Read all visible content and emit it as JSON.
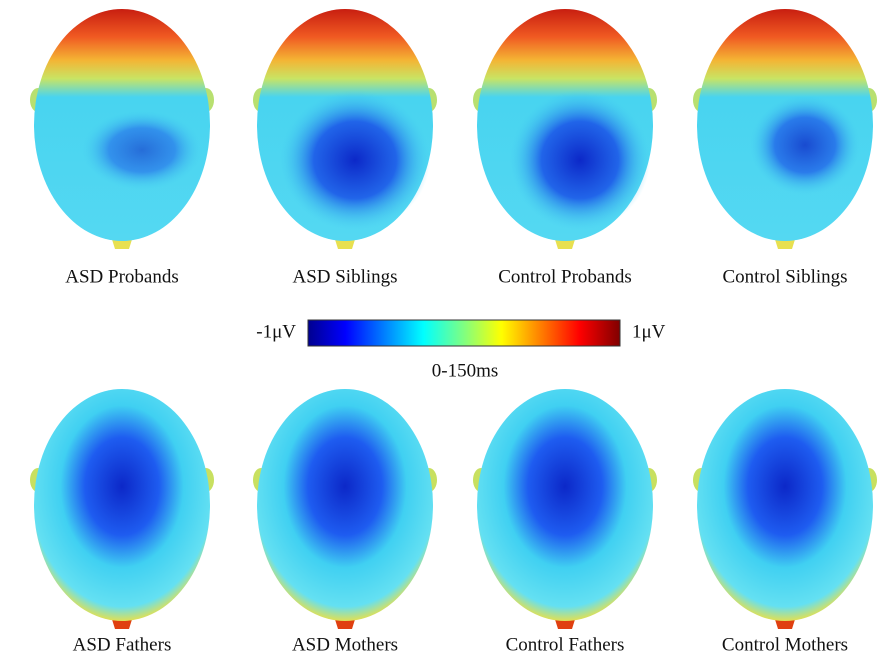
{
  "panels": [
    {
      "label": "ASD Probands"
    },
    {
      "label": "ASD Siblings"
    },
    {
      "label": "Control Probands"
    },
    {
      "label": "Control Siblings"
    },
    {
      "label": "ASD Fathers"
    },
    {
      "label": "ASD Mothers"
    },
    {
      "label": "Control Fathers"
    },
    {
      "label": "Control Mothers"
    }
  ],
  "colorbar": {
    "min_label": "-1μV",
    "max_label": "1μV",
    "caption": "0-150ms"
  }
}
